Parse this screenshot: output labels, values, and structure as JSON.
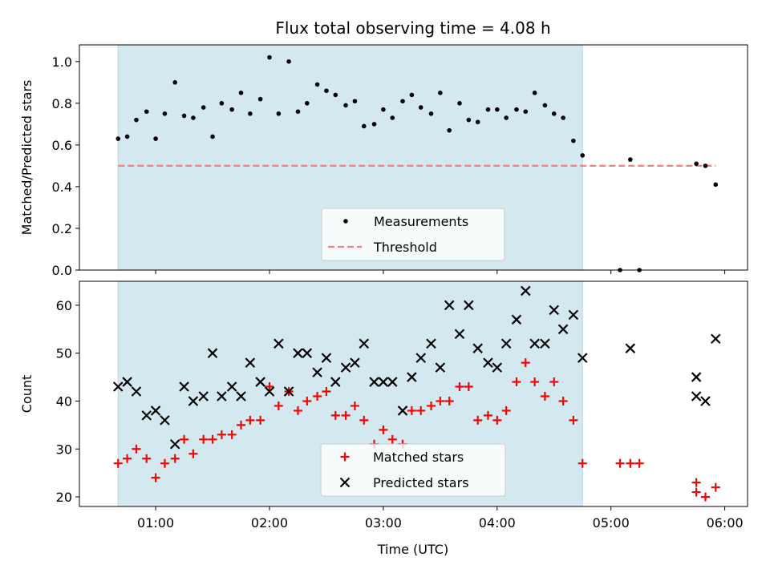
{
  "chart_data": {
    "type": "scatter",
    "title": "Flux total observing time = 4.08 h",
    "xlabel": "Time (UTC)",
    "x_tick_labels": [
      "01:00",
      "02:00",
      "03:00",
      "04:00",
      "05:00",
      "06:00"
    ],
    "x_tick_hours": [
      1,
      2,
      3,
      4,
      5,
      6
    ],
    "xlim_hours": [
      0.33,
      6.2
    ],
    "highlight_span_hours": [
      0.67,
      4.75
    ],
    "highlight_color": "#d3e9ef",
    "panels": [
      {
        "name": "ratio",
        "ylabel": "Matched/Predicted stars",
        "ylim": [
          0,
          1.08
        ],
        "y_ticks": [
          0.0,
          0.2,
          0.4,
          0.6,
          0.8,
          1.0
        ],
        "y_tick_labels": [
          "0.0",
          "0.2",
          "0.4",
          "0.6",
          "0.8",
          "1.0"
        ],
        "threshold": {
          "name": "Threshold",
          "value": 0.5,
          "x_range_hours": [
            0.67,
            5.92
          ],
          "color": "#f08080"
        },
        "legend": {
          "position": "lower center",
          "entries": [
            "Measurements",
            "Threshold"
          ]
        },
        "series": [
          {
            "name": "Measurements",
            "marker": "dot",
            "color": "#000000",
            "points": [
              [
                0.67,
                0.63
              ],
              [
                0.75,
                0.64
              ],
              [
                0.83,
                0.72
              ],
              [
                0.92,
                0.76
              ],
              [
                1.0,
                0.63
              ],
              [
                1.08,
                0.75
              ],
              [
                1.17,
                0.9
              ],
              [
                1.25,
                0.74
              ],
              [
                1.33,
                0.73
              ],
              [
                1.42,
                0.78
              ],
              [
                1.5,
                0.64
              ],
              [
                1.58,
                0.8
              ],
              [
                1.67,
                0.77
              ],
              [
                1.75,
                0.85
              ],
              [
                1.83,
                0.75
              ],
              [
                1.92,
                0.82
              ],
              [
                2.0,
                1.02
              ],
              [
                2.08,
                0.75
              ],
              [
                2.17,
                1.0
              ],
              [
                2.25,
                0.76
              ],
              [
                2.33,
                0.8
              ],
              [
                2.42,
                0.89
              ],
              [
                2.5,
                0.86
              ],
              [
                2.58,
                0.84
              ],
              [
                2.67,
                0.79
              ],
              [
                2.75,
                0.81
              ],
              [
                2.83,
                0.69
              ],
              [
                2.92,
                0.7
              ],
              [
                3.0,
                0.77
              ],
              [
                3.08,
                0.73
              ],
              [
                3.17,
                0.81
              ],
              [
                3.25,
                0.84
              ],
              [
                3.33,
                0.78
              ],
              [
                3.42,
                0.75
              ],
              [
                3.5,
                0.85
              ],
              [
                3.58,
                0.67
              ],
              [
                3.67,
                0.8
              ],
              [
                3.75,
                0.72
              ],
              [
                3.83,
                0.71
              ],
              [
                3.92,
                0.77
              ],
              [
                4.0,
                0.77
              ],
              [
                4.08,
                0.73
              ],
              [
                4.17,
                0.77
              ],
              [
                4.25,
                0.76
              ],
              [
                4.33,
                0.85
              ],
              [
                4.42,
                0.79
              ],
              [
                4.5,
                0.75
              ],
              [
                4.58,
                0.73
              ],
              [
                4.67,
                0.62
              ],
              [
                4.75,
                0.55
              ],
              [
                5.08,
                0.0
              ],
              [
                5.17,
                0.53
              ],
              [
                5.25,
                0.0
              ],
              [
                5.75,
                0.51
              ],
              [
                5.83,
                0.5
              ],
              [
                5.92,
                0.41
              ]
            ]
          }
        ]
      },
      {
        "name": "counts",
        "ylabel": "Count",
        "ylim": [
          18,
          65
        ],
        "y_ticks": [
          20,
          30,
          40,
          50,
          60
        ],
        "y_tick_labels": [
          "20",
          "30",
          "40",
          "50",
          "60"
        ],
        "legend": {
          "position": "lower center",
          "entries": [
            "Matched stars",
            "Predicted stars"
          ]
        },
        "series": [
          {
            "name": "Matched stars",
            "marker": "plus",
            "color": "#ff0000",
            "points": [
              [
                0.67,
                27
              ],
              [
                0.75,
                28
              ],
              [
                0.83,
                30
              ],
              [
                0.92,
                28
              ],
              [
                1.0,
                24
              ],
              [
                1.08,
                27
              ],
              [
                1.17,
                28
              ],
              [
                1.25,
                32
              ],
              [
                1.33,
                29
              ],
              [
                1.42,
                32
              ],
              [
                1.5,
                32
              ],
              [
                1.58,
                33
              ],
              [
                1.67,
                33
              ],
              [
                1.75,
                35
              ],
              [
                1.83,
                36
              ],
              [
                1.92,
                36
              ],
              [
                2.0,
                43
              ],
              [
                2.08,
                39
              ],
              [
                2.17,
                42
              ],
              [
                2.25,
                38
              ],
              [
                2.33,
                40
              ],
              [
                2.42,
                41
              ],
              [
                2.5,
                42
              ],
              [
                2.58,
                37
              ],
              [
                2.67,
                37
              ],
              [
                2.75,
                39
              ],
              [
                2.83,
                36
              ],
              [
                2.92,
                31
              ],
              [
                3.0,
                34
              ],
              [
                3.08,
                32
              ],
              [
                3.17,
                31
              ],
              [
                3.25,
                38
              ],
              [
                3.33,
                38
              ],
              [
                3.42,
                39
              ],
              [
                3.5,
                40
              ],
              [
                3.58,
                40
              ],
              [
                3.67,
                43
              ],
              [
                3.75,
                43
              ],
              [
                3.83,
                36
              ],
              [
                3.92,
                37
              ],
              [
                4.0,
                36
              ],
              [
                4.08,
                38
              ],
              [
                4.17,
                44
              ],
              [
                4.25,
                48
              ],
              [
                4.33,
                44
              ],
              [
                4.42,
                41
              ],
              [
                4.5,
                44
              ],
              [
                4.58,
                40
              ],
              [
                4.67,
                36
              ],
              [
                4.75,
                27
              ],
              [
                5.08,
                27
              ],
              [
                5.17,
                27
              ],
              [
                5.25,
                27
              ],
              [
                5.75,
                23
              ],
              [
                5.75,
                21
              ],
              [
                5.83,
                20
              ],
              [
                5.92,
                22
              ]
            ]
          },
          {
            "name": "Predicted stars",
            "marker": "x",
            "color": "#000000",
            "points": [
              [
                0.67,
                43
              ],
              [
                0.75,
                44
              ],
              [
                0.83,
                42
              ],
              [
                0.92,
                37
              ],
              [
                1.0,
                38
              ],
              [
                1.08,
                36
              ],
              [
                1.17,
                31
              ],
              [
                1.25,
                43
              ],
              [
                1.33,
                40
              ],
              [
                1.42,
                41
              ],
              [
                1.5,
                50
              ],
              [
                1.58,
                41
              ],
              [
                1.67,
                43
              ],
              [
                1.75,
                41
              ],
              [
                1.83,
                48
              ],
              [
                1.92,
                44
              ],
              [
                2.0,
                42
              ],
              [
                2.08,
                52
              ],
              [
                2.17,
                42
              ],
              [
                2.25,
                50
              ],
              [
                2.33,
                50
              ],
              [
                2.42,
                46
              ],
              [
                2.5,
                49
              ],
              [
                2.58,
                44
              ],
              [
                2.67,
                47
              ],
              [
                2.75,
                48
              ],
              [
                2.83,
                52
              ],
              [
                2.92,
                44
              ],
              [
                3.0,
                44
              ],
              [
                3.08,
                44
              ],
              [
                3.17,
                38
              ],
              [
                3.25,
                45
              ],
              [
                3.33,
                49
              ],
              [
                3.42,
                52
              ],
              [
                3.5,
                47
              ],
              [
                3.58,
                60
              ],
              [
                3.67,
                54
              ],
              [
                3.75,
                60
              ],
              [
                3.83,
                51
              ],
              [
                3.92,
                48
              ],
              [
                4.0,
                47
              ],
              [
                4.08,
                52
              ],
              [
                4.17,
                57
              ],
              [
                4.25,
                63
              ],
              [
                4.33,
                52
              ],
              [
                4.42,
                52
              ],
              [
                4.5,
                59
              ],
              [
                4.58,
                55
              ],
              [
                4.67,
                58
              ],
              [
                4.75,
                49
              ],
              [
                5.17,
                51
              ],
              [
                5.75,
                45
              ],
              [
                5.75,
                41
              ],
              [
                5.83,
                40
              ],
              [
                5.92,
                53
              ]
            ]
          }
        ]
      }
    ]
  }
}
